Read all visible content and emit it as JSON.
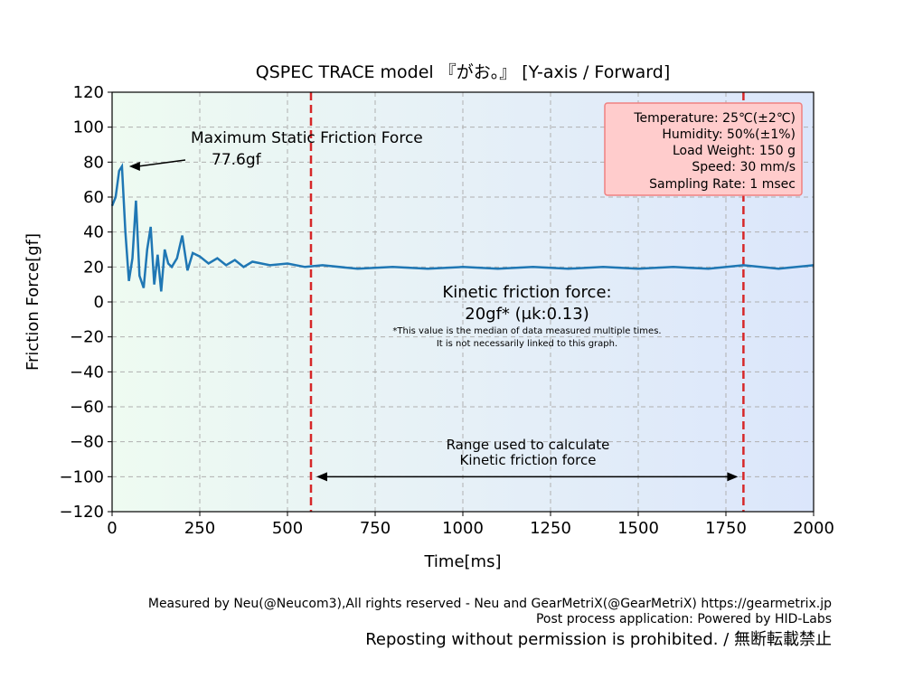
{
  "chart_data": {
    "type": "line",
    "title": "QSPEC TRACE model 『がお。』 [Y-axis / Forward]",
    "xlabel": "Time[ms]",
    "ylabel": "Friction Force[gf]",
    "xlim": [
      0,
      2000
    ],
    "ylim": [
      -120,
      120
    ],
    "xticks": [
      0,
      250,
      500,
      750,
      1000,
      1250,
      1500,
      1750,
      2000
    ],
    "yticks": [
      -120,
      -100,
      -80,
      -60,
      -40,
      -20,
      0,
      20,
      40,
      60,
      80,
      100,
      120
    ],
    "grid": true,
    "series": [
      {
        "color": "#1f77b4",
        "x": [
          0,
          10,
          20,
          28,
          38,
          48,
          58,
          68,
          78,
          90,
          100,
          110,
          120,
          130,
          140,
          150,
          160,
          170,
          185,
          200,
          215,
          230,
          250,
          275,
          300,
          325,
          350,
          375,
          400,
          450,
          500,
          550,
          600,
          700,
          800,
          900,
          1000,
          1100,
          1200,
          1300,
          1400,
          1500,
          1600,
          1700,
          1800,
          1900,
          2000
        ],
        "y": [
          55,
          60,
          75,
          77.6,
          40,
          12,
          25,
          58,
          15,
          8,
          30,
          43,
          10,
          27,
          6,
          30,
          22,
          20,
          25,
          38,
          18,
          28,
          26,
          22,
          25,
          21,
          24,
          20,
          23,
          21,
          22,
          20,
          21,
          19,
          20,
          19,
          20,
          19,
          20,
          19,
          20,
          19,
          20,
          19,
          21,
          19,
          21
        ]
      }
    ],
    "vlines": [
      567,
      1800
    ],
    "annotations": {
      "static_label": "Maximum Static Friction Force",
      "static_value": "77.6gf",
      "static_point": [
        28,
        77.6
      ],
      "kinetic_label": "Kinetic friction force:",
      "kinetic_value": "20gf* (μk:0.13)",
      "kinetic_note_1": "*This value is the median of data measured multiple times.",
      "kinetic_note_2": "It is not necessarily linked to this graph.",
      "range_label_1": "Range used to calculate",
      "range_label_2": "Kinetic friction force",
      "range_arrow": [
        567,
        1800,
        -100
      ]
    },
    "info_box": [
      "Temperature: 25℃(±2℃)",
      "Humidity: 50%(±1%)",
      "Load Weight: 150 g",
      "Speed: 30 mm/s",
      "Sampling Rate: 1 msec"
    ]
  },
  "footer": {
    "line1": "Measured by Neu(@Neucom3),All rights reserved - Neu and GearMetriX(@GearMetriX) https://gearmetrix.jp",
    "line2": "Post process application: Powered by HID-Labs",
    "line3": "Reposting without permission is prohibited. / 無断転載禁止"
  },
  "colors": {
    "series": "#1f77b4",
    "vline": "#d62728",
    "info_box_bg": "#ffcccc",
    "info_box_border": "#f08080"
  }
}
